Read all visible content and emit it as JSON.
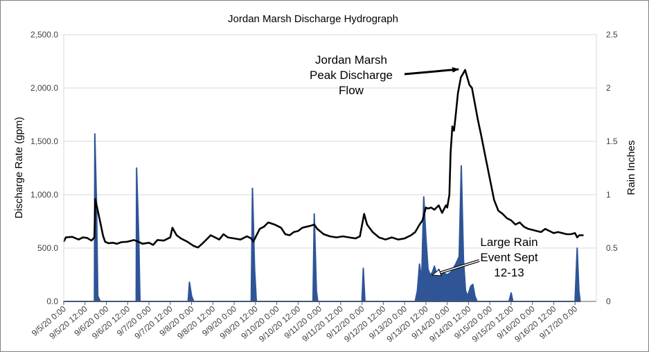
{
  "chart_data": {
    "type": "line",
    "title": "Jordan Marsh Discharge Hydrograph",
    "ylabel": "Discharge Rate (gpm)",
    "y2label": "Rain Inches",
    "ylim": [
      0,
      2500
    ],
    "y2lim": [
      0,
      2.5
    ],
    "yticks": [
      "0.0",
      "500.0",
      "1,000.0",
      "1,500.0",
      "2,000.0",
      "2,500.0"
    ],
    "y2ticks": [
      "0",
      "0.5",
      "1",
      "1.5",
      "2",
      "2.5"
    ],
    "xlim_days": [
      0,
      12.5
    ],
    "xticks": [
      "9/5/20 0:00",
      "9/5/20 12:00",
      "9/6/20 0:00",
      "9/6/20 12:00",
      "9/7/20 0:00",
      "9/7/20 12:00",
      "9/8/20 0:00",
      "9/8/20 12:00",
      "9/9/20 0:00",
      "9/9/20 12:00",
      "9/10/20 0:00",
      "9/10/20 12:00",
      "9/11/20 0:00",
      "9/11/20 12:00",
      "9/12/20 0:00",
      "9/12/20 12:00",
      "9/13/20 0:00",
      "9/13/20 12:00",
      "9/14/20 0:00",
      "9/14/20 12:00",
      "9/15/20 0:00",
      "9/15/20 12:00",
      "9/16/20 0:00",
      "9/16/20 12:00",
      "9/17/20 0:00"
    ],
    "grid": "horizontal",
    "series": [
      {
        "axis": "right",
        "style": "area",
        "color": "#2f5597",
        "points": [
          [
            0,
            0
          ],
          [
            0.72,
            0
          ],
          [
            0.73,
            1.57
          ],
          [
            0.77,
            0.9
          ],
          [
            0.8,
            0.05
          ],
          [
            0.86,
            0
          ],
          [
            1.7,
            0
          ],
          [
            1.71,
            1.25
          ],
          [
            1.76,
            0.6
          ],
          [
            1.79,
            0
          ],
          [
            2.92,
            0
          ],
          [
            2.95,
            0.18
          ],
          [
            3.0,
            0.05
          ],
          [
            3.05,
            0
          ],
          [
            4.4,
            0
          ],
          [
            4.43,
            1.06
          ],
          [
            4.48,
            0.3
          ],
          [
            4.52,
            0
          ],
          [
            5.85,
            0
          ],
          [
            5.88,
            0.82
          ],
          [
            5.93,
            0.1
          ],
          [
            5.96,
            0
          ],
          [
            7.0,
            0
          ],
          [
            7.03,
            0.31
          ],
          [
            7.07,
            0
          ],
          [
            8.25,
            0
          ],
          [
            8.3,
            0.1
          ],
          [
            8.35,
            0.35
          ],
          [
            8.4,
            0.2
          ],
          [
            8.45,
            0.98
          ],
          [
            8.5,
            0.6
          ],
          [
            8.55,
            0.3
          ],
          [
            8.6,
            0.25
          ],
          [
            8.65,
            0.27
          ],
          [
            8.7,
            0.33
          ],
          [
            8.75,
            0.26
          ],
          [
            8.8,
            0.3
          ],
          [
            8.85,
            0.25
          ],
          [
            8.9,
            0.28
          ],
          [
            8.95,
            0.26
          ],
          [
            9.0,
            0.25
          ],
          [
            9.1,
            0.28
          ],
          [
            9.2,
            0.35
          ],
          [
            9.28,
            0.42
          ],
          [
            9.33,
            1.27
          ],
          [
            9.38,
            0.4
          ],
          [
            9.43,
            0.1
          ],
          [
            9.48,
            0.05
          ],
          [
            9.55,
            0.14
          ],
          [
            9.6,
            0.16
          ],
          [
            9.65,
            0.05
          ],
          [
            9.7,
            0
          ],
          [
            10.45,
            0
          ],
          [
            10.5,
            0.08
          ],
          [
            10.54,
            0
          ],
          [
            12.0,
            0
          ],
          [
            12.05,
            0.5
          ],
          [
            12.09,
            0.1
          ],
          [
            12.12,
            0
          ]
        ]
      },
      {
        "axis": "left",
        "style": "line",
        "color": "#000000",
        "points": [
          [
            0,
            560
          ],
          [
            0.05,
            600
          ],
          [
            0.2,
            605
          ],
          [
            0.35,
            580
          ],
          [
            0.45,
            600
          ],
          [
            0.55,
            595
          ],
          [
            0.65,
            570
          ],
          [
            0.72,
            600
          ],
          [
            0.74,
            960
          ],
          [
            0.8,
            850
          ],
          [
            0.88,
            700
          ],
          [
            0.92,
            620
          ],
          [
            0.97,
            560
          ],
          [
            1.05,
            545
          ],
          [
            1.15,
            550
          ],
          [
            1.25,
            540
          ],
          [
            1.35,
            555
          ],
          [
            1.5,
            560
          ],
          [
            1.65,
            575
          ],
          [
            1.75,
            560
          ],
          [
            1.85,
            540
          ],
          [
            2.0,
            550
          ],
          [
            2.1,
            530
          ],
          [
            2.2,
            575
          ],
          [
            2.35,
            570
          ],
          [
            2.5,
            600
          ],
          [
            2.55,
            690
          ],
          [
            2.65,
            620
          ],
          [
            2.75,
            590
          ],
          [
            2.9,
            560
          ],
          [
            3.05,
            520
          ],
          [
            3.15,
            505
          ],
          [
            3.25,
            540
          ],
          [
            3.35,
            580
          ],
          [
            3.45,
            620
          ],
          [
            3.55,
            600
          ],
          [
            3.65,
            580
          ],
          [
            3.75,
            630
          ],
          [
            3.85,
            600
          ],
          [
            4.0,
            590
          ],
          [
            4.15,
            580
          ],
          [
            4.3,
            610
          ],
          [
            4.4,
            590
          ],
          [
            4.45,
            560
          ],
          [
            4.5,
            600
          ],
          [
            4.6,
            680
          ],
          [
            4.7,
            700
          ],
          [
            4.8,
            740
          ],
          [
            4.95,
            720
          ],
          [
            5.1,
            690
          ],
          [
            5.2,
            630
          ],
          [
            5.3,
            620
          ],
          [
            5.4,
            650
          ],
          [
            5.5,
            660
          ],
          [
            5.6,
            690
          ],
          [
            5.7,
            700
          ],
          [
            5.8,
            710
          ],
          [
            5.88,
            720
          ],
          [
            5.95,
            680
          ],
          [
            6.1,
            630
          ],
          [
            6.25,
            610
          ],
          [
            6.4,
            600
          ],
          [
            6.55,
            610
          ],
          [
            6.7,
            600
          ],
          [
            6.85,
            590
          ],
          [
            6.95,
            610
          ],
          [
            7.05,
            820
          ],
          [
            7.12,
            720
          ],
          [
            7.25,
            650
          ],
          [
            7.4,
            600
          ],
          [
            7.55,
            580
          ],
          [
            7.7,
            600
          ],
          [
            7.85,
            580
          ],
          [
            8.0,
            590
          ],
          [
            8.15,
            620
          ],
          [
            8.25,
            650
          ],
          [
            8.35,
            720
          ],
          [
            8.42,
            760
          ],
          [
            8.5,
            880
          ],
          [
            8.55,
            870
          ],
          [
            8.62,
            880
          ],
          [
            8.7,
            860
          ],
          [
            8.8,
            900
          ],
          [
            8.88,
            830
          ],
          [
            8.97,
            900
          ],
          [
            9.0,
            880
          ],
          [
            9.05,
            1000
          ],
          [
            9.08,
            1400
          ],
          [
            9.12,
            1640
          ],
          [
            9.16,
            1600
          ],
          [
            9.2,
            1750
          ],
          [
            9.25,
            1950
          ],
          [
            9.32,
            2100
          ],
          [
            9.38,
            2140
          ],
          [
            9.42,
            2170
          ],
          [
            9.47,
            2100
          ],
          [
            9.52,
            2030
          ],
          [
            9.58,
            2000
          ],
          [
            9.65,
            1850
          ],
          [
            9.72,
            1700
          ],
          [
            9.8,
            1550
          ],
          [
            9.9,
            1350
          ],
          [
            10.0,
            1150
          ],
          [
            10.1,
            950
          ],
          [
            10.2,
            850
          ],
          [
            10.3,
            820
          ],
          [
            10.4,
            780
          ],
          [
            10.5,
            760
          ],
          [
            10.6,
            720
          ],
          [
            10.7,
            740
          ],
          [
            10.8,
            700
          ],
          [
            10.9,
            680
          ],
          [
            11.0,
            670
          ],
          [
            11.1,
            660
          ],
          [
            11.2,
            650
          ],
          [
            11.3,
            680
          ],
          [
            11.4,
            660
          ],
          [
            11.5,
            640
          ],
          [
            11.6,
            650
          ],
          [
            11.7,
            640
          ],
          [
            11.8,
            630
          ],
          [
            11.9,
            630
          ],
          [
            12.0,
            640
          ],
          [
            12.05,
            600
          ],
          [
            12.1,
            620
          ],
          [
            12.2,
            620
          ]
        ]
      }
    ],
    "annotations": [
      {
        "lines": [
          "Jordan Marsh",
          "Peak Discharge",
          "Flow"
        ]
      },
      {
        "lines": [
          "Large Rain",
          "Event Sept",
          "12-13"
        ]
      }
    ]
  }
}
